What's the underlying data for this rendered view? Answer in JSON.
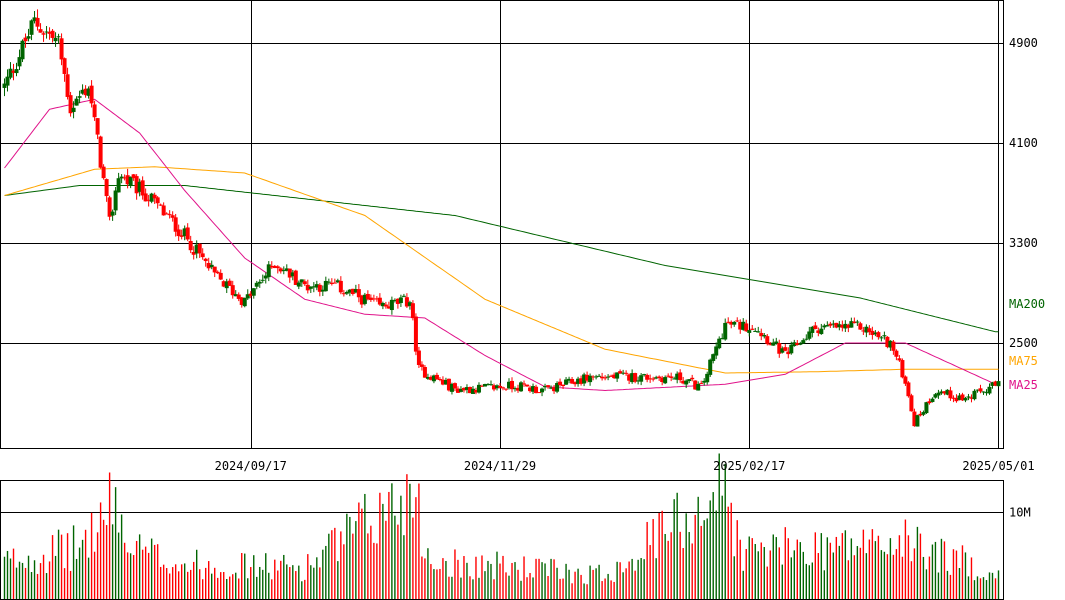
{
  "chart_data": {
    "type": "candlestick",
    "title": "",
    "y_ticks": [
      4900,
      4100,
      3300,
      2500
    ],
    "ylim": [
      1700,
      5250
    ],
    "x_labels": [
      "2024/09/17",
      "2024/11/29",
      "2025/02/17",
      "2025/05/01"
    ],
    "volume_ticks": [
      "10M"
    ],
    "volume_max": 12000000,
    "up_color": "#006400",
    "down_color": "#ff0000",
    "ma_lines": [
      {
        "name": "MA200",
        "color": "#006400"
      },
      {
        "name": "MA75",
        "color": "#ffa500"
      },
      {
        "name": "MA25",
        "color": "#e0128a"
      }
    ],
    "ma200_anchors": [
      [
        0,
        3680
      ],
      [
        25,
        3760
      ],
      [
        60,
        3760
      ],
      [
        90,
        3680
      ],
      [
        150,
        3520
      ],
      [
        220,
        3120
      ],
      [
        285,
        2860
      ],
      [
        330,
        2590
      ]
    ],
    "ma75_anchors": [
      [
        0,
        3680
      ],
      [
        30,
        3890
      ],
      [
        50,
        3910
      ],
      [
        80,
        3860
      ],
      [
        120,
        3520
      ],
      [
        160,
        2850
      ],
      [
        200,
        2450
      ],
      [
        240,
        2260
      ],
      [
        270,
        2270
      ],
      [
        300,
        2290
      ],
      [
        330,
        2290
      ]
    ],
    "ma25_anchors": [
      [
        0,
        3900
      ],
      [
        15,
        4370
      ],
      [
        30,
        4450
      ],
      [
        45,
        4180
      ],
      [
        60,
        3720
      ],
      [
        80,
        3180
      ],
      [
        100,
        2850
      ],
      [
        120,
        2730
      ],
      [
        140,
        2700
      ],
      [
        160,
        2400
      ],
      [
        180,
        2150
      ],
      [
        200,
        2120
      ],
      [
        240,
        2170
      ],
      [
        260,
        2250
      ],
      [
        280,
        2500
      ],
      [
        300,
        2500
      ],
      [
        320,
        2280
      ],
      [
        330,
        2170
      ]
    ],
    "price_anchors": [
      [
        0,
        4550
      ],
      [
        10,
        5070
      ],
      [
        18,
        4900
      ],
      [
        22,
        4380
      ],
      [
        28,
        4560
      ],
      [
        32,
        3960
      ],
      [
        35,
        3450
      ],
      [
        38,
        3850
      ],
      [
        48,
        3670
      ],
      [
        60,
        3360
      ],
      [
        70,
        3040
      ],
      [
        80,
        2830
      ],
      [
        90,
        3140
      ],
      [
        100,
        2960
      ],
      [
        110,
        2960
      ],
      [
        125,
        2790
      ],
      [
        135,
        2840
      ],
      [
        138,
        2290
      ],
      [
        150,
        2130
      ],
      [
        160,
        2140
      ],
      [
        170,
        2160
      ],
      [
        180,
        2120
      ],
      [
        195,
        2230
      ],
      [
        210,
        2230
      ],
      [
        225,
        2220
      ],
      [
        232,
        2140
      ],
      [
        240,
        2650
      ],
      [
        250,
        2630
      ],
      [
        260,
        2400
      ],
      [
        270,
        2620
      ],
      [
        285,
        2630
      ],
      [
        295,
        2500
      ],
      [
        300,
        2200
      ],
      [
        303,
        1860
      ],
      [
        310,
        2120
      ],
      [
        320,
        2050
      ],
      [
        330,
        2160
      ]
    ],
    "volume_anchors": [
      [
        0,
        4200000
      ],
      [
        10,
        5000000
      ],
      [
        25,
        6000000
      ],
      [
        38,
        11500000
      ],
      [
        40,
        6000000
      ],
      [
        60,
        4000000
      ],
      [
        100,
        3600000
      ],
      [
        138,
        13000000
      ],
      [
        140,
        4500000
      ],
      [
        200,
        2800000
      ],
      [
        240,
        13000000
      ],
      [
        245,
        5500000
      ],
      [
        300,
        6500000
      ],
      [
        330,
        3000000
      ]
    ]
  },
  "ma_labels": {
    "ma200": "MA200",
    "ma75": "MA75",
    "ma25": "MA25"
  }
}
